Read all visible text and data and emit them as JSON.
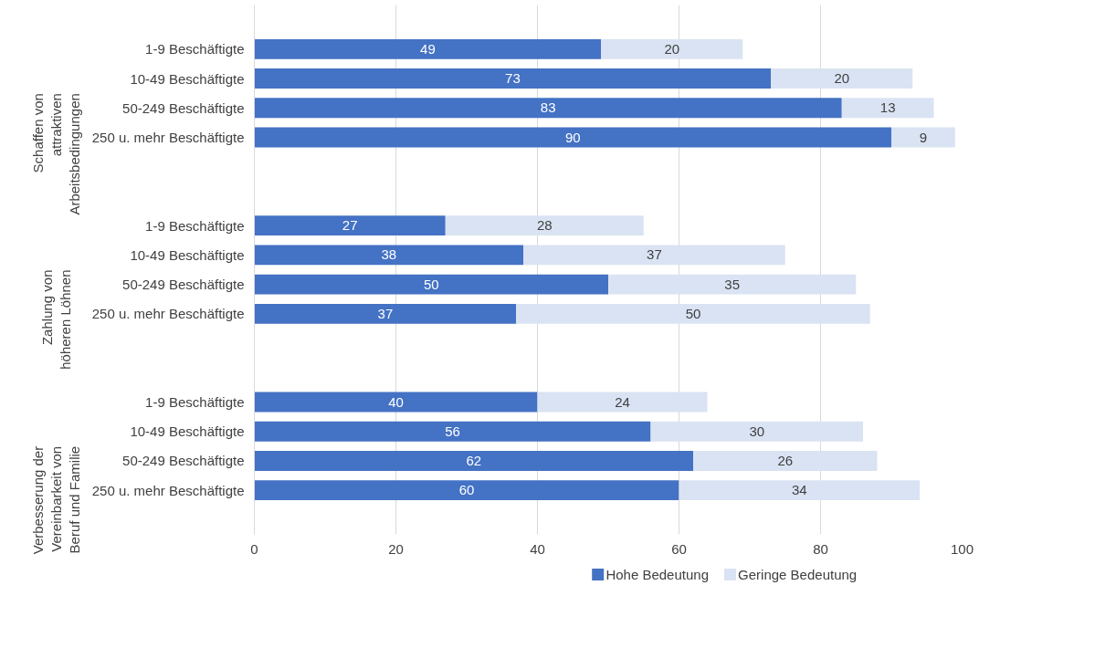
{
  "chart_data": {
    "type": "bar",
    "orientation": "horizontal",
    "stacked": true,
    "categories": [
      null,
      "1-9 Beschäftigte",
      "10-49 Beschäftigte",
      "50-249 Beschäftigte",
      "250 u. mehr Beschäftigte",
      null,
      null,
      "1-9 Beschäftigte",
      "10-49 Beschäftigte",
      "50-249 Beschäftigte",
      "250 u. mehr Beschäftigte",
      null,
      null,
      "1-9 Beschäftigte",
      "10-49 Beschäftigte",
      "50-249 Beschäftigte",
      "250 u. mehr Beschäftigte",
      null
    ],
    "series": [
      {
        "name": "Hohe Bedeutung",
        "color": "#4472c4",
        "values": [
          null,
          49,
          73,
          83,
          90,
          null,
          null,
          27,
          38,
          50,
          37,
          null,
          null,
          40,
          56,
          62,
          60,
          null
        ]
      },
      {
        "name": "Geringe Bedeutung",
        "color": "#dae3f3",
        "values": [
          null,
          20,
          20,
          13,
          9,
          null,
          null,
          28,
          37,
          35,
          50,
          null,
          null,
          24,
          30,
          26,
          34,
          null
        ]
      }
    ],
    "annotations": [
      "Schaffen von\nattraktiven\nArbeitsbedingungen",
      "Zahlung von\nhöheren Löhnen",
      "Verbesserung der\nVereinbarkeit von\nBeruf und Familie"
    ],
    "xlim": [
      0,
      100
    ],
    "xticks": [
      0,
      20,
      40,
      60,
      80,
      100
    ],
    "grid": "x",
    "data_labels": true,
    "legend": "bottom"
  }
}
